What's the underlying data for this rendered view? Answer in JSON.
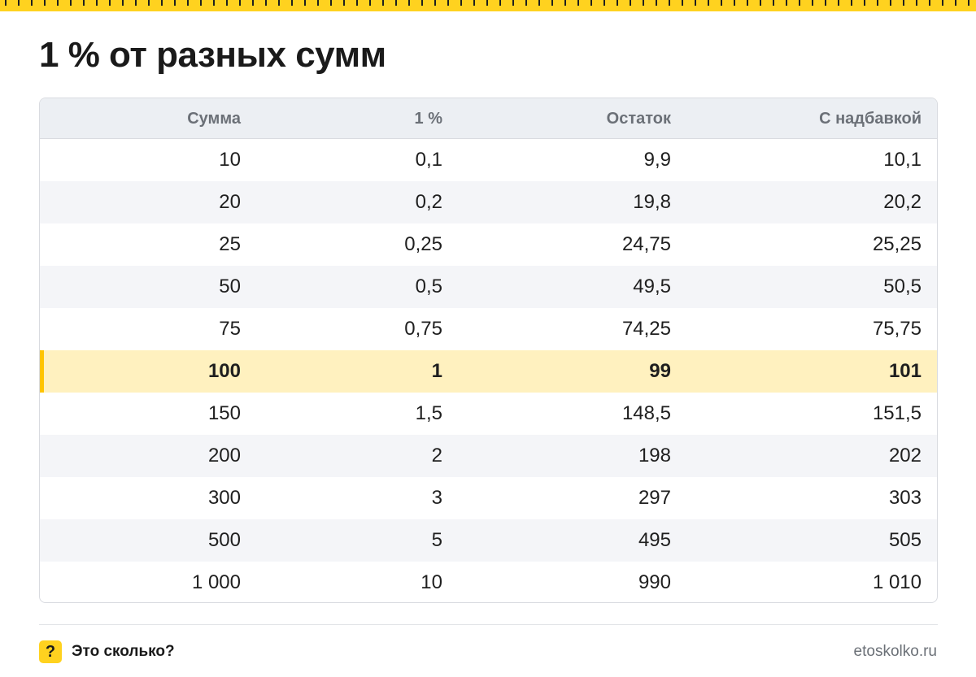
{
  "title": "1 % от разных сумм",
  "table": {
    "headers": [
      "Сумма",
      "1 %",
      "Остаток",
      "С надбавкой"
    ],
    "rows": [
      [
        "10",
        "0,1",
        "9,9",
        "10,1"
      ],
      [
        "20",
        "0,2",
        "19,8",
        "20,2"
      ],
      [
        "25",
        "0,25",
        "24,75",
        "25,25"
      ],
      [
        "50",
        "0,5",
        "49,5",
        "50,5"
      ],
      [
        "75",
        "0,75",
        "74,25",
        "75,75"
      ],
      [
        "100",
        "1",
        "99",
        "101"
      ],
      [
        "150",
        "1,5",
        "148,5",
        "151,5"
      ],
      [
        "200",
        "2",
        "198",
        "202"
      ],
      [
        "300",
        "3",
        "297",
        "303"
      ],
      [
        "500",
        "5",
        "495",
        "505"
      ],
      [
        "1 000",
        "10",
        "990",
        "1 010"
      ]
    ],
    "highlighted_row": 5
  },
  "footer": {
    "logo_icon": "?",
    "brand": "Это сколько?",
    "site": "etoskolko.ru"
  },
  "colors": {
    "accent": "#ffd21f",
    "highlight_row": "#fff1bf",
    "header_bg": "#eceff3",
    "alt_row": "#f4f5f8"
  }
}
